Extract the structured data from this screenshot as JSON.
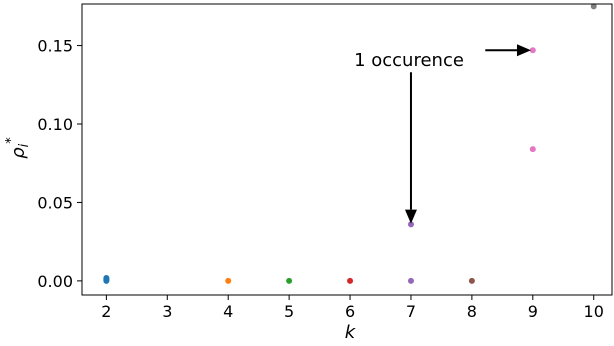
{
  "chart_data": {
    "type": "scatter",
    "xlabel": "k",
    "ylabel": "ρ*i",
    "xlim": [
      1.6,
      10.3
    ],
    "ylim": [
      -0.009,
      0.1765
    ],
    "xticks": [
      2,
      3,
      4,
      5,
      6,
      7,
      8,
      9,
      10
    ],
    "yticks": [
      0.0,
      0.05,
      0.1,
      0.15
    ],
    "ytick_labels": [
      "0.00",
      "0.05",
      "0.10",
      "0.15"
    ],
    "grid": false,
    "series": [
      {
        "color": "#1f77b4",
        "points": [
          [
            2,
            0.0
          ],
          [
            2,
            0.0006
          ],
          [
            2,
            0.0012
          ],
          [
            2,
            0.0018
          ]
        ]
      },
      {
        "color": "#ff7f0e",
        "points": [
          [
            4,
            0.0
          ]
        ]
      },
      {
        "color": "#2ca02c",
        "points": [
          [
            5,
            0.0
          ]
        ]
      },
      {
        "color": "#d62728",
        "points": [
          [
            6,
            0.0
          ]
        ]
      },
      {
        "color": "#9467bd",
        "points": [
          [
            7,
            0.0
          ],
          [
            7,
            0.036
          ]
        ]
      },
      {
        "color": "#8c564b",
        "points": [
          [
            8,
            0.0
          ]
        ]
      },
      {
        "color": "#e377c2",
        "points": [
          [
            9,
            0.084
          ],
          [
            9,
            0.147
          ]
        ]
      },
      {
        "color": "#7f7f7f",
        "points": [
          [
            10,
            0.175
          ]
        ]
      }
    ],
    "annotations": [
      {
        "text": "1 occurence",
        "arrows": [
          {
            "from": [
              7,
              0.133
            ],
            "to": [
              7,
              0.0365
            ]
          },
          {
            "from": [
              8.22,
              0.147
            ],
            "to": [
              8.97,
              0.147
            ]
          }
        ]
      }
    ]
  }
}
